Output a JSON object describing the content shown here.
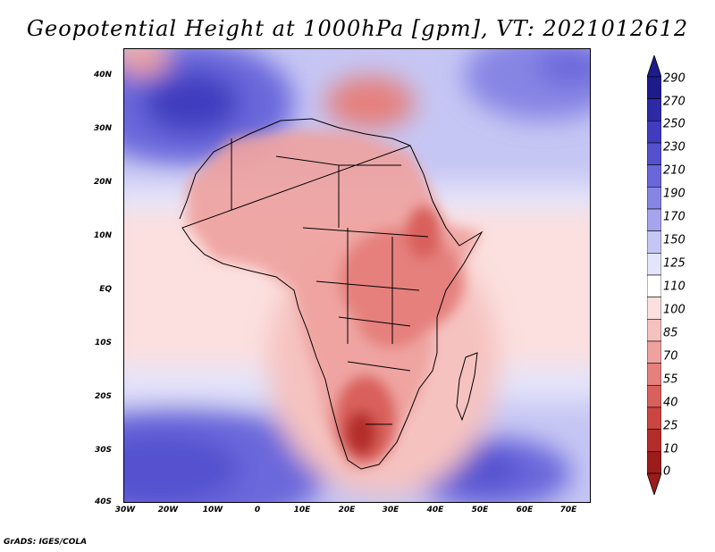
{
  "title": "Geopotential Height at 1000hPa [gpm], VT: 2021012612",
  "credit": "GrADS: IGES/COLA",
  "map": {
    "lat_labels": [
      "40N",
      "30N",
      "20N",
      "10N",
      "EQ",
      "10S",
      "20S",
      "30S",
      "40S"
    ],
    "lon_labels": [
      "30W",
      "20W",
      "10W",
      "0",
      "10E",
      "20E",
      "30E",
      "40E",
      "50E",
      "60E",
      "70E"
    ]
  },
  "colorbar": {
    "levels": [
      "290",
      "270",
      "250",
      "230",
      "210",
      "190",
      "170",
      "150",
      "125",
      "110",
      "100",
      "85",
      "70",
      "55",
      "40",
      "25",
      "10",
      "0"
    ],
    "colors": [
      "#1e1b8c",
      "#2d2aa6",
      "#3f3cc0",
      "#5451cf",
      "#6a67db",
      "#8785e4",
      "#a5a4ec",
      "#c6c6f4",
      "#e4e4fa",
      "#ffffff",
      "#fbe0df",
      "#f5c2c0",
      "#eea19e",
      "#e5807d",
      "#d9605c",
      "#cb4541",
      "#b52d2a",
      "#9b1c1a"
    ]
  }
}
